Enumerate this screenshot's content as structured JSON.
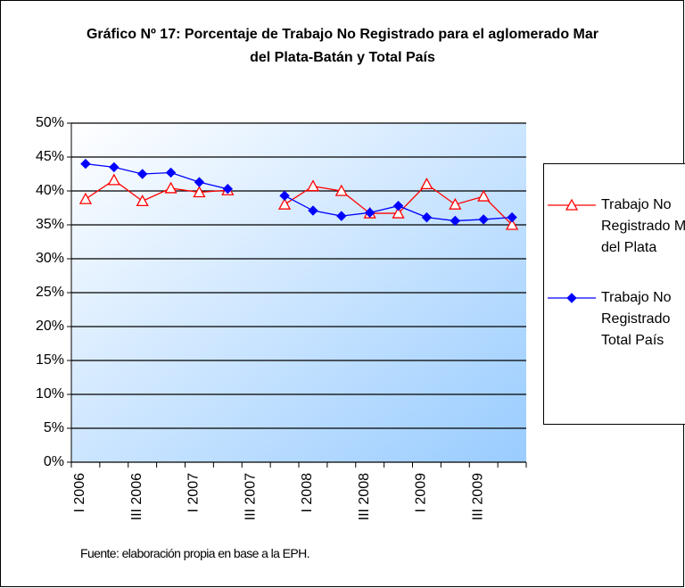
{
  "chart_data": {
    "type": "line",
    "title": "Gráfico Nº 17: Porcentaje de Trabajo No Registrado para el aglomerado Mar del Plata-Batán y Total País",
    "categories": [
      "I 2006",
      null,
      "III 2006",
      null,
      "I 2007",
      null,
      "III 2007",
      null,
      "I 2008",
      null,
      "III 2008",
      null,
      "I 2009",
      null,
      "III 2009",
      null
    ],
    "series": [
      {
        "name": "Trabajo No Registrado Mar del Plata",
        "color": "#ff0000",
        "marker": "triangle",
        "values": [
          38.8,
          41.6,
          38.5,
          40.4,
          39.8,
          40.1,
          null,
          38.0,
          40.7,
          40.0,
          36.7,
          36.7,
          41.0,
          38.0,
          39.2,
          35.0
        ]
      },
      {
        "name": "Trabajo No Registrado Total País",
        "color": "#0000ff",
        "marker": "diamond",
        "values": [
          44.0,
          43.5,
          42.5,
          42.7,
          41.3,
          40.3,
          null,
          39.3,
          37.1,
          36.3,
          36.8,
          37.8,
          36.1,
          35.6,
          35.8,
          36.1
        ]
      }
    ],
    "ylim": [
      0,
      50
    ],
    "yticks": [
      {
        "value": 0,
        "label": "0%"
      },
      {
        "value": 5,
        "label": "5%"
      },
      {
        "value": 10,
        "label": "10%"
      },
      {
        "value": 15,
        "label": "15%"
      },
      {
        "value": 20,
        "label": "20%"
      },
      {
        "value": 25,
        "label": "25%"
      },
      {
        "value": 30,
        "label": "30%"
      },
      {
        "value": 35,
        "label": "35%"
      },
      {
        "value": 40,
        "label": "40%"
      },
      {
        "value": 45,
        "label": "45%"
      },
      {
        "value": 50,
        "label": "50%"
      }
    ],
    "grid": true,
    "legend": "right",
    "source": "Fuente: elaboración propia en base a la EPH."
  }
}
